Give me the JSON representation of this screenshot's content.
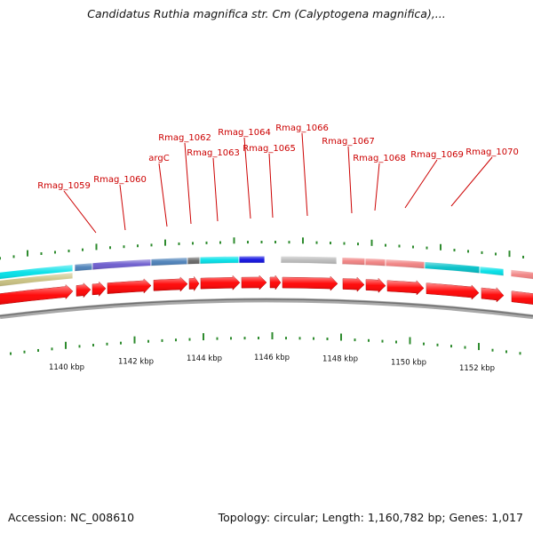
{
  "title": "Candidatus Ruthia magnifica str. Cm (Calyptogena magnifica),...",
  "accession": "Accession: NC_008610",
  "summary": "Topology: circular; Length: 1,160,782 bp; Genes: 1,017",
  "kbp_labels": [
    "1140 kbp",
    "1142 kbp",
    "1144 kbp",
    "1146 kbp",
    "1148 kbp",
    "1150 kbp",
    "1152 kbp"
  ],
  "gene_labels": [
    "Rmag_1059",
    "Rmag_1060",
    "argC",
    "Rmag_1062",
    "Rmag_1063",
    "Rmag_1064",
    "Rmag_1065",
    "Rmag_1066",
    "Rmag_1067",
    "Rmag_1068",
    "Rmag_1069",
    "Rmag_1070"
  ],
  "colors": {
    "gene_label": "#cc0000",
    "cds": "#ff0000",
    "tick": "#2e8b2e",
    "backbone": "#888888",
    "cyan": "#00e0e8",
    "olive": "#c8c080",
    "steel_blue": "#4a7fb8",
    "slate_purple": "#6a5acd",
    "dark_gray": "#666666",
    "blue": "#1010e0",
    "light_gray": "#bbbbbb",
    "salmon": "#f08080",
    "teal": "#00c0c8"
  }
}
